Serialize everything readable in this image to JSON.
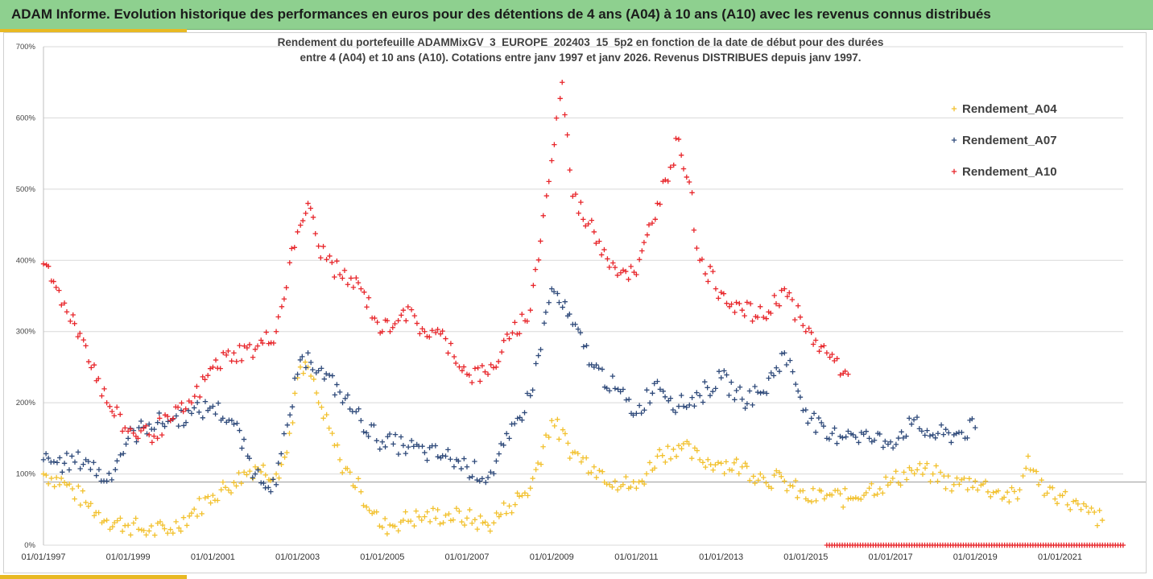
{
  "header": {
    "title": "ADAM Informe. Evolution historique des performances en euros pour des détentions de 4 ans (A04) à 10 ans (A10) avec les revenus connus distribués"
  },
  "colors": {
    "banner": "#8ED08F",
    "accent": "#E8B923",
    "A04": "#F2C12E",
    "A07": "#2F4A7A",
    "A10": "#E8262B"
  },
  "chart_data": {
    "type": "scatter",
    "title": "Rendement du portefeuille ADAMMixGV_3_EUROPE_202403_15_5p2  en fonction de la date de début pour des durées",
    "subtitle": "entre 4 (A04) et 10 ans (A10). Cotations entre janv 1997 et janv 2026. Revenus DISTRIBUES depuis janv 1997.",
    "x_range": [
      "1997-01-01",
      "2022-06-30"
    ],
    "y_range": [
      0,
      700
    ],
    "y_unit": "%",
    "y_ticks": [
      0,
      100,
      200,
      300,
      400,
      500,
      600,
      700
    ],
    "y_tick_labels": [
      "0%",
      "100%",
      "200%",
      "300%",
      "400%",
      "500%",
      "600%",
      "700%"
    ],
    "x_ticks": [
      "1997-01-01",
      "1999-01-01",
      "2001-01-01",
      "2003-01-01",
      "2005-01-01",
      "2007-01-01",
      "2009-01-01",
      "2011-01-01",
      "2013-01-01",
      "2015-01-01",
      "2017-01-01",
      "2019-01-01",
      "2021-01-01"
    ],
    "x_tick_labels": [
      "01/01/1997",
      "01/01/1999",
      "01/01/2001",
      "01/01/2003",
      "01/01/2005",
      "01/01/2007",
      "01/01/2009",
      "01/01/2011",
      "01/01/2013",
      "01/01/2015",
      "01/01/2017",
      "01/01/2019",
      "01/01/2021"
    ],
    "gridlines": "horizontal",
    "reference_line_y": 100,
    "legend_position": "top-right",
    "marker": "plus",
    "series": [
      {
        "name": "Rendement_A04",
        "color": "#F2C12E",
        "points": [
          [
            "1997-01-01",
            100
          ],
          [
            "1997-07-01",
            88
          ],
          [
            "1998-01-01",
            60
          ],
          [
            "1998-07-01",
            35
          ],
          [
            "1999-01-01",
            28
          ],
          [
            "1999-07-01",
            20
          ],
          [
            "2000-01-01",
            22
          ],
          [
            "2000-07-01",
            45
          ],
          [
            "2001-01-01",
            70
          ],
          [
            "2001-07-01",
            88
          ],
          [
            "2002-01-01",
            110
          ],
          [
            "2002-07-01",
            100
          ],
          [
            "2002-10-01",
            130
          ],
          [
            "2003-01-01",
            235
          ],
          [
            "2003-04-01",
            250
          ],
          [
            "2003-07-01",
            200
          ],
          [
            "2004-01-01",
            120
          ],
          [
            "2004-07-01",
            75
          ],
          [
            "2005-01-01",
            25
          ],
          [
            "2005-07-01",
            35
          ],
          [
            "2006-01-01",
            40
          ],
          [
            "2006-07-01",
            42
          ],
          [
            "2007-01-01",
            38
          ],
          [
            "2007-07-01",
            28
          ],
          [
            "2008-01-01",
            55
          ],
          [
            "2008-07-01",
            80
          ],
          [
            "2009-01-01",
            175
          ],
          [
            "2009-07-01",
            130
          ],
          [
            "2010-01-01",
            110
          ],
          [
            "2010-07-01",
            90
          ],
          [
            "2011-01-01",
            80
          ],
          [
            "2011-07-01",
            125
          ],
          [
            "2012-01-01",
            140
          ],
          [
            "2012-07-01",
            120
          ],
          [
            "2013-01-01",
            115
          ],
          [
            "2013-07-01",
            110
          ],
          [
            "2014-01-01",
            95
          ],
          [
            "2014-07-01",
            90
          ],
          [
            "2015-01-01",
            65
          ],
          [
            "2015-07-01",
            70
          ],
          [
            "2016-01-01",
            65
          ],
          [
            "2016-07-01",
            80
          ],
          [
            "2017-01-01",
            88
          ],
          [
            "2017-07-01",
            105
          ],
          [
            "2018-01-01",
            100
          ],
          [
            "2018-07-01",
            85
          ],
          [
            "2019-01-01",
            90
          ],
          [
            "2019-07-01",
            75
          ],
          [
            "2020-01-01",
            65
          ],
          [
            "2020-04-01",
            125
          ],
          [
            "2020-07-01",
            85
          ],
          [
            "2021-01-01",
            70
          ],
          [
            "2021-07-01",
            50
          ],
          [
            "2022-01-01",
            35
          ]
        ]
      },
      {
        "name": "Rendement_A07",
        "color": "#2F4A7A",
        "points": [
          [
            "1997-01-01",
            120
          ],
          [
            "1997-07-01",
            115
          ],
          [
            "1998-01-01",
            120
          ],
          [
            "1998-07-01",
            90
          ],
          [
            "1999-01-01",
            150
          ],
          [
            "1999-07-01",
            170
          ],
          [
            "2000-01-01",
            175
          ],
          [
            "2000-07-01",
            185
          ],
          [
            "2001-01-01",
            195
          ],
          [
            "2001-07-01",
            170
          ],
          [
            "2002-01-01",
            100
          ],
          [
            "2002-07-01",
            85
          ],
          [
            "2003-01-01",
            240
          ],
          [
            "2003-04-01",
            270
          ],
          [
            "2003-07-01",
            245
          ],
          [
            "2004-01-01",
            215
          ],
          [
            "2004-07-01",
            175
          ],
          [
            "2005-01-01",
            145
          ],
          [
            "2005-07-01",
            140
          ],
          [
            "2006-01-01",
            130
          ],
          [
            "2006-07-01",
            125
          ],
          [
            "2007-01-01",
            110
          ],
          [
            "2007-07-01",
            95
          ],
          [
            "2008-01-01",
            150
          ],
          [
            "2008-07-01",
            210
          ],
          [
            "2009-01-01",
            360
          ],
          [
            "2009-07-01",
            310
          ],
          [
            "2010-01-01",
            250
          ],
          [
            "2010-07-01",
            220
          ],
          [
            "2011-01-01",
            185
          ],
          [
            "2011-07-01",
            230
          ],
          [
            "2012-01-01",
            195
          ],
          [
            "2012-07-01",
            210
          ],
          [
            "2013-01-01",
            235
          ],
          [
            "2013-07-01",
            205
          ],
          [
            "2014-01-01",
            215
          ],
          [
            "2014-07-01",
            270
          ],
          [
            "2015-01-01",
            190
          ],
          [
            "2015-07-01",
            150
          ],
          [
            "2016-01-01",
            160
          ],
          [
            "2016-07-01",
            150
          ],
          [
            "2017-01-01",
            145
          ],
          [
            "2017-07-01",
            170
          ],
          [
            "2018-01-01",
            155
          ],
          [
            "2018-07-01",
            155
          ],
          [
            "2019-01-01",
            165
          ]
        ]
      },
      {
        "name": "Rendement_A10",
        "color": "#E8262B",
        "points": [
          [
            "1997-01-01",
            395
          ],
          [
            "1997-07-01",
            340
          ],
          [
            "1998-01-01",
            280
          ],
          [
            "1998-07-01",
            200
          ],
          [
            "1999-01-01",
            160
          ],
          [
            "1999-07-01",
            155
          ],
          [
            "2000-01-01",
            175
          ],
          [
            "2000-07-01",
            200
          ],
          [
            "2001-01-01",
            250
          ],
          [
            "2001-07-01",
            270
          ],
          [
            "2002-01-01",
            275
          ],
          [
            "2002-07-01",
            300
          ],
          [
            "2003-01-01",
            440
          ],
          [
            "2003-04-01",
            480
          ],
          [
            "2003-07-01",
            420
          ],
          [
            "2004-01-01",
            380
          ],
          [
            "2004-07-01",
            360
          ],
          [
            "2005-01-01",
            300
          ],
          [
            "2005-07-01",
            330
          ],
          [
            "2006-01-01",
            300
          ],
          [
            "2006-07-01",
            290
          ],
          [
            "2007-01-01",
            240
          ],
          [
            "2007-07-01",
            240
          ],
          [
            "2008-01-01",
            290
          ],
          [
            "2008-07-01",
            330
          ],
          [
            "2009-01-01",
            540
          ],
          [
            "2009-04-01",
            650
          ],
          [
            "2009-07-01",
            490
          ],
          [
            "2010-01-01",
            440
          ],
          [
            "2010-07-01",
            390
          ],
          [
            "2011-01-01",
            380
          ],
          [
            "2011-07-01",
            480
          ],
          [
            "2012-01-01",
            570
          ],
          [
            "2012-04-01",
            510
          ],
          [
            "2012-07-01",
            400
          ],
          [
            "2013-01-01",
            355
          ],
          [
            "2013-07-01",
            330
          ],
          [
            "2014-01-01",
            320
          ],
          [
            "2014-07-01",
            360
          ],
          [
            "2015-01-01",
            300
          ],
          [
            "2015-07-01",
            270
          ],
          [
            "2016-01-01",
            240
          ]
        ]
      }
    ],
    "zero_marker_range": [
      "2015-07-01",
      "2022-06-30"
    ],
    "zero_marker_color": "#E8262B"
  }
}
